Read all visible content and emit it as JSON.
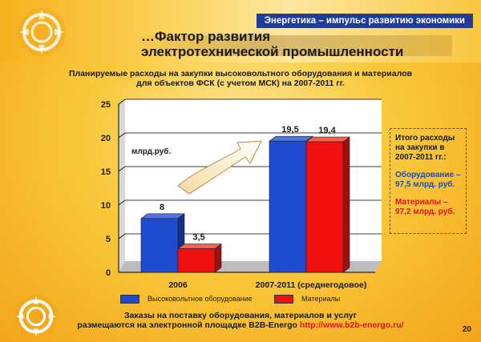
{
  "header": {
    "tagline": "Энергетика – импульс развитию экономики",
    "title_line1": "…Фактор развития",
    "title_line2": "электротехнической промышленности"
  },
  "colors": {
    "blue": "#1f4bd1",
    "red": "#f01010",
    "accent_blue": "#1f3c96",
    "accent_red": "#d8151a"
  },
  "chart_data": {
    "type": "bar",
    "title_line1": "Планируемые расходы на закупки высоковольтного оборудования и материалов",
    "title_line2": "для объектов ФСК (с учетом МСК) на 2007-2011 гг.",
    "categories": [
      "2006",
      "2007-2011 (среднегодовое)"
    ],
    "series": [
      {
        "name": "Высоковольтное оборудование",
        "values": [
          8,
          19.5
        ],
        "labels": [
          "8",
          "19,5"
        ]
      },
      {
        "name": "Материалы",
        "values": [
          3.5,
          19.4
        ],
        "labels": [
          "3,5",
          "19,4"
        ]
      }
    ],
    "ylabel": "млрд.руб.",
    "ylim": [
      0,
      25
    ],
    "yticks": [
      "0",
      "5",
      "10",
      "15",
      "20",
      "25"
    ],
    "legend": "bottom"
  },
  "summary": {
    "heading": "Итого расходы на закупки в 2007-2011 гг.:",
    "equipment": "Оборудование – 97,5 млрд. руб.",
    "materials": "Материалы – 97,2 млрд. руб."
  },
  "legend": {
    "item1": "Высоковольтное оборудование",
    "item2": "Материалы"
  },
  "footer": {
    "line1": "Заказы на поставку оборудования, материалов и услуг",
    "line2": "размещаются на электронной площадке B2B-Energo",
    "link": "http://www.b2b-energo.ru/"
  },
  "page_number": "20"
}
